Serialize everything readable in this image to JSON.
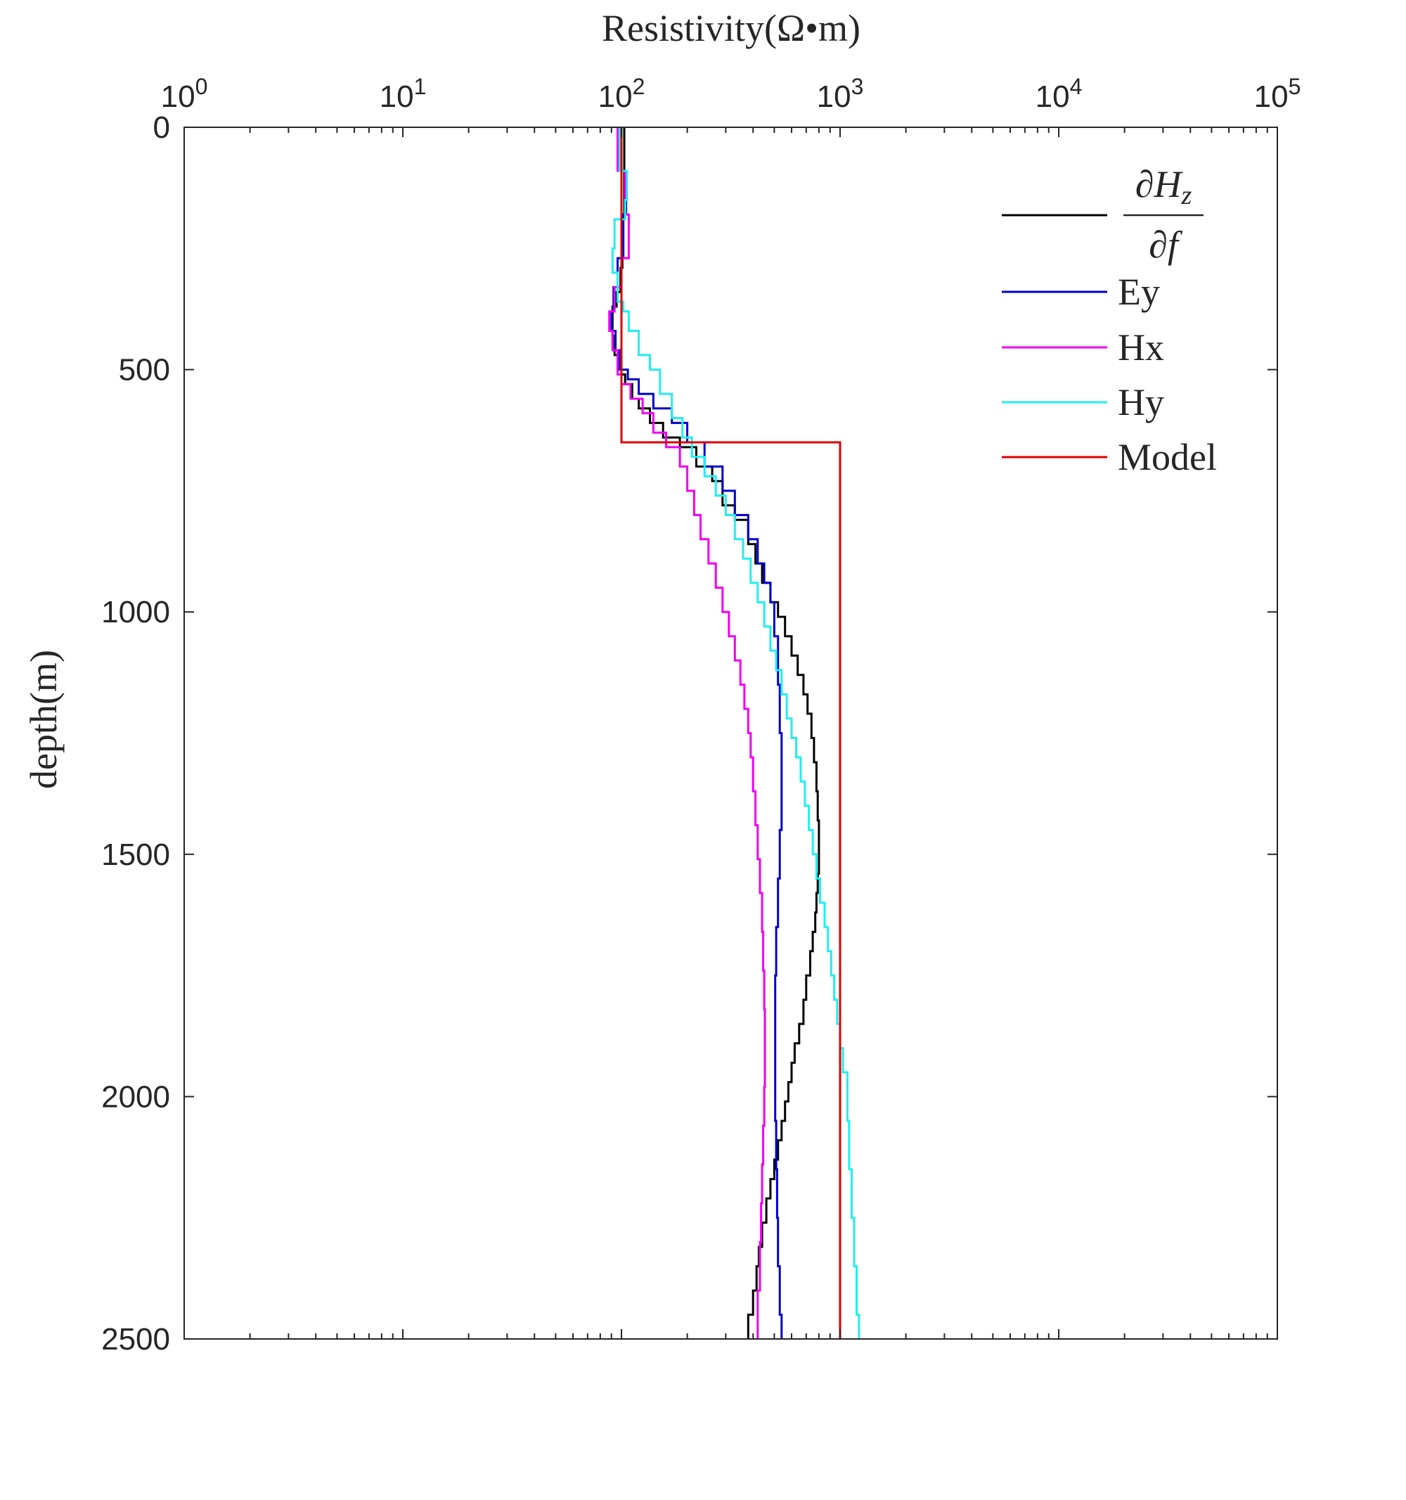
{
  "chart_data": {
    "type": "line",
    "title": "",
    "xlabel": "Resistivity(Ω•m)",
    "ylabel": "depth(m)",
    "x_scale": "log",
    "xlim": [
      1,
      100000
    ],
    "ylim": [
      0,
      2500
    ],
    "y_reversed": true,
    "x_ticks": [
      {
        "base": "10",
        "exp": "0",
        "value": 1
      },
      {
        "base": "10",
        "exp": "1",
        "value": 10
      },
      {
        "base": "10",
        "exp": "2",
        "value": 100
      },
      {
        "base": "10",
        "exp": "3",
        "value": 1000
      },
      {
        "base": "10",
        "exp": "4",
        "value": 10000
      },
      {
        "base": "10",
        "exp": "5",
        "value": 100000
      }
    ],
    "y_ticks": [
      {
        "label": "0",
        "value": 0
      },
      {
        "label": "500",
        "value": 500
      },
      {
        "label": "1000",
        "value": 1000
      },
      {
        "label": "1500",
        "value": 1500
      },
      {
        "label": "2000",
        "value": 2000
      },
      {
        "label": "2500",
        "value": 2500
      }
    ],
    "grid": false,
    "legend_position": "top-right",
    "legend_first_label": {
      "num_sym": "∂",
      "num_var": "H",
      "num_sub": "z",
      "den_sym": "∂",
      "den_var": "f"
    },
    "series": [
      {
        "name": "∂Hz/∂f",
        "color": "#000000",
        "step": true,
        "points": [
          [
            103,
            0
          ],
          [
            101,
            180
          ],
          [
            99,
            290
          ],
          [
            95,
            340
          ],
          [
            91,
            370
          ],
          [
            93,
            430
          ],
          [
            100,
            470
          ],
          [
            104,
            510
          ],
          [
            112,
            530
          ],
          [
            120,
            560
          ],
          [
            135,
            580
          ],
          [
            155,
            610
          ],
          [
            185,
            640
          ],
          [
            220,
            660
          ],
          [
            260,
            700
          ],
          [
            290,
            730
          ],
          [
            330,
            780
          ],
          [
            380,
            810
          ],
          [
            410,
            860
          ],
          [
            440,
            900
          ],
          [
            480,
            940
          ],
          [
            520,
            980
          ],
          [
            560,
            1010
          ],
          [
            600,
            1050
          ],
          [
            640,
            1090
          ],
          [
            680,
            1130
          ],
          [
            710,
            1170
          ],
          [
            740,
            1210
          ],
          [
            760,
            1260
          ],
          [
            780,
            1310
          ],
          [
            790,
            1370
          ],
          [
            800,
            1430
          ],
          [
            800,
            1490
          ],
          [
            790,
            1540
          ],
          [
            780,
            1580
          ],
          [
            770,
            1620
          ],
          [
            750,
            1660
          ],
          [
            730,
            1700
          ],
          [
            700,
            1750
          ],
          [
            680,
            1800
          ],
          [
            650,
            1850
          ],
          [
            620,
            1890
          ],
          [
            600,
            1930
          ],
          [
            580,
            1970
          ],
          [
            560,
            2010
          ],
          [
            540,
            2050
          ],
          [
            520,
            2090
          ],
          [
            500,
            2130
          ],
          [
            480,
            2170
          ],
          [
            460,
            2210
          ],
          [
            440,
            2260
          ],
          [
            425,
            2310
          ],
          [
            415,
            2350
          ],
          [
            400,
            2400
          ],
          [
            380,
            2450
          ],
          [
            380,
            2500
          ]
        ]
      },
      {
        "name": "Ey",
        "color": "#0000cc",
        "step": true,
        "points": [
          [
            100,
            0
          ],
          [
            105,
            90
          ],
          [
            102,
            180
          ],
          [
            96,
            270
          ],
          [
            92,
            330
          ],
          [
            90,
            380
          ],
          [
            94,
            420
          ],
          [
            98,
            460
          ],
          [
            107,
            500
          ],
          [
            120,
            520
          ],
          [
            140,
            550
          ],
          [
            170,
            580
          ],
          [
            200,
            610
          ],
          [
            240,
            650
          ],
          [
            290,
            700
          ],
          [
            330,
            750
          ],
          [
            380,
            800
          ],
          [
            420,
            850
          ],
          [
            450,
            900
          ],
          [
            480,
            940
          ],
          [
            500,
            980
          ],
          [
            520,
            1050
          ],
          [
            530,
            1150
          ],
          [
            540,
            1250
          ],
          [
            540,
            1350
          ],
          [
            530,
            1450
          ],
          [
            520,
            1550
          ],
          [
            510,
            1650
          ],
          [
            505,
            1750
          ],
          [
            505,
            1850
          ],
          [
            505,
            1950
          ],
          [
            510,
            2050
          ],
          [
            515,
            2150
          ],
          [
            520,
            2250
          ],
          [
            530,
            2350
          ],
          [
            540,
            2450
          ],
          [
            540,
            2500
          ]
        ]
      },
      {
        "name": "Hx",
        "color": "#ee00ee",
        "step": true,
        "points": [
          [
            96,
            0
          ],
          [
            104,
            90
          ],
          [
            108,
            180
          ],
          [
            100,
            270
          ],
          [
            93,
            330
          ],
          [
            88,
            380
          ],
          [
            91,
            420
          ],
          [
            96,
            460
          ],
          [
            100,
            510
          ],
          [
            110,
            530
          ],
          [
            125,
            560
          ],
          [
            140,
            590
          ],
          [
            160,
            630
          ],
          [
            185,
            660
          ],
          [
            200,
            700
          ],
          [
            215,
            750
          ],
          [
            230,
            800
          ],
          [
            250,
            850
          ],
          [
            270,
            900
          ],
          [
            290,
            950
          ],
          [
            310,
            1000
          ],
          [
            330,
            1050
          ],
          [
            350,
            1100
          ],
          [
            365,
            1150
          ],
          [
            380,
            1200
          ],
          [
            390,
            1250
          ],
          [
            400,
            1300
          ],
          [
            410,
            1370
          ],
          [
            420,
            1440
          ],
          [
            430,
            1510
          ],
          [
            440,
            1580
          ],
          [
            445,
            1660
          ],
          [
            450,
            1740
          ],
          [
            453,
            1820
          ],
          [
            453,
            1900
          ],
          [
            450,
            1980
          ],
          [
            445,
            2060
          ],
          [
            440,
            2140
          ],
          [
            435,
            2220
          ],
          [
            430,
            2300
          ],
          [
            420,
            2400
          ],
          [
            418,
            2500
          ]
        ]
      },
      {
        "name": "Hy",
        "color": "#22eeee",
        "step": true,
        "points": [
          [
            98,
            0
          ],
          [
            106,
            90
          ],
          [
            104,
            150
          ],
          [
            93,
            190
          ],
          [
            91,
            250
          ],
          [
            96,
            300
          ],
          [
            102,
            360
          ],
          [
            108,
            380
          ],
          [
            120,
            420
          ],
          [
            135,
            470
          ],
          [
            150,
            500
          ],
          [
            170,
            550
          ],
          [
            190,
            600
          ],
          [
            210,
            640
          ],
          [
            240,
            680
          ],
          [
            270,
            720
          ],
          [
            300,
            760
          ],
          [
            330,
            800
          ],
          [
            360,
            850
          ],
          [
            390,
            890
          ],
          [
            420,
            940
          ],
          [
            450,
            980
          ],
          [
            480,
            1030
          ],
          [
            510,
            1080
          ],
          [
            540,
            1120
          ],
          [
            570,
            1170
          ],
          [
            600,
            1220
          ],
          [
            630,
            1260
          ],
          [
            660,
            1300
          ],
          [
            690,
            1350
          ],
          [
            720,
            1400
          ],
          [
            750,
            1450
          ],
          [
            780,
            1500
          ],
          [
            810,
            1550
          ],
          [
            850,
            1600
          ],
          [
            880,
            1650
          ],
          [
            910,
            1700
          ],
          [
            940,
            1750
          ],
          [
            970,
            1800
          ],
          [
            1000,
            1850
          ],
          [
            1030,
            1900
          ],
          [
            1080,
            1950
          ],
          [
            1100,
            2050
          ],
          [
            1130,
            2150
          ],
          [
            1160,
            2250
          ],
          [
            1190,
            2350
          ],
          [
            1220,
            2450
          ],
          [
            1230,
            2500
          ]
        ]
      },
      {
        "name": "Model",
        "color": "#dd0000",
        "step": false,
        "points": [
          [
            100,
            0
          ],
          [
            100,
            650
          ],
          [
            1000,
            650
          ],
          [
            1000,
            2500
          ]
        ]
      }
    ]
  }
}
